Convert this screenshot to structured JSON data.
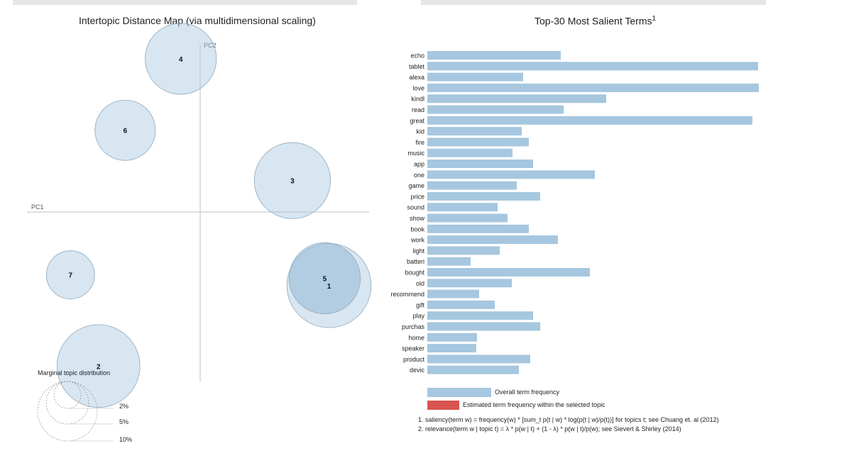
{
  "map": {
    "title": "Intertopic Distance Map (via multidimensional scaling)",
    "pc1_label": "PC1",
    "pc2_label": "PC2",
    "marginal_title": "Marginal topic distribution",
    "marginal_scale": [
      "2%",
      "5%",
      "10%"
    ]
  },
  "terms": {
    "title": "Top-30 Most Salient Terms",
    "title_sup": "1",
    "legend_overall": "Overall term frequency",
    "legend_estimated": "Estimated term frequency within the selected topic",
    "footnote_1": "1. saliency(term w) = frequency(w) * [sum_t p(t | w) * log(p(t | w)/p(t))] for topics t; see Chuang et. al (2012)",
    "footnote_2": "2. relevance(term w | topic t) = λ * p(w | t) + (1 - λ) * p(w | t)/p(w); see Sievert & Shirley (2014)"
  },
  "colors": {
    "bar": "#a6c7df",
    "selected_topic": "#d9534f",
    "topic_circle": "#a6c7df"
  },
  "chart_data": [
    {
      "type": "scatter",
      "title": "Intertopic Distance Map (via multidimensional scaling)",
      "xlabel": "PC1",
      "ylabel": "PC2",
      "points": [
        {
          "topic": "1",
          "pc1": 0.299,
          "pc2": -0.171,
          "size": 16.5
        },
        {
          "topic": "2",
          "pc1": -0.236,
          "pc2": -0.358,
          "size": 16.0
        },
        {
          "topic": "3",
          "pc1": 0.214,
          "pc2": 0.073,
          "size": 13.5
        },
        {
          "topic": "4",
          "pc1": -0.045,
          "pc2": 0.356,
          "size": 11.8
        },
        {
          "topic": "5",
          "pc1": 0.289,
          "pc2": -0.154,
          "size": 11.8
        },
        {
          "topic": "6",
          "pc1": -0.174,
          "pc2": 0.19,
          "size": 8.5
        },
        {
          "topic": "7",
          "pc1": -0.301,
          "pc2": -0.146,
          "size": 5.4
        }
      ],
      "marginal_legend": [
        "2%",
        "5%",
        "10%"
      ]
    },
    {
      "type": "bar",
      "orientation": "horizontal",
      "title": "Top-30 Most Salient Terms",
      "categories": [
        "echo",
        "tablet",
        "alexa",
        "love",
        "kindl",
        "read",
        "great",
        "kid",
        "fire",
        "music",
        "app",
        "one",
        "game",
        "price",
        "sound",
        "show",
        "book",
        "work",
        "light",
        "batteri",
        "bought",
        "old",
        "recommend",
        "gift",
        "play",
        "purchas",
        "home",
        "speaker",
        "product",
        "devic"
      ],
      "series": [
        {
          "name": "Overall term frequency",
          "values": [
            1880,
            4660,
            1350,
            4670,
            2520,
            1920,
            4580,
            1330,
            1430,
            1200,
            1490,
            2360,
            1260,
            1590,
            990,
            1130,
            1430,
            1840,
            1020,
            610,
            2290,
            1190,
            730,
            950,
            1490,
            1590,
            700,
            690,
            1450,
            1290
          ]
        }
      ],
      "xlim": [
        0,
        4670
      ]
    }
  ]
}
